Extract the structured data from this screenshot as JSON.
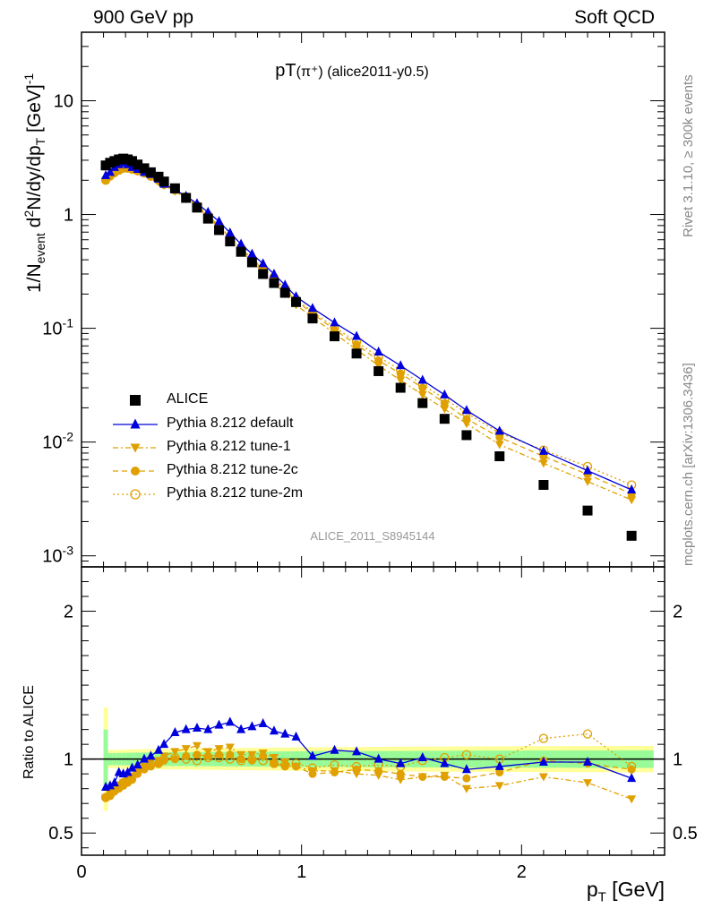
{
  "header": {
    "left": "900 GeV pp",
    "right": "Soft QCD"
  },
  "plot_title": {
    "main": "pT",
    "particle": "(π⁺)",
    "tag": " (alice2011-y0.5)"
  },
  "y_label_top": "1/Nevent d2N/dy/dpT [GeV]-1",
  "y_label_bottom": "Ratio to ALICE",
  "x_label": "pT [GeV]",
  "side_text_top": "Rivet 3.1.10, ≥ 300k events",
  "side_text_bottom": "mcplots.cern.ch [arXiv:1306.3436]",
  "analysis_id": "ALICE_2011_S8945144",
  "legend": [
    "ALICE",
    "Pythia 8.212 default",
    "Pythia 8.212 tune-1",
    "Pythia 8.212 tune-2c",
    "Pythia 8.212 tune-2m"
  ],
  "colors": {
    "data": "#000000",
    "default": "#0000dd",
    "tunes": "#e0a000",
    "band_inner": "#98fb98",
    "band_outer": "#ffff99"
  },
  "chart_data": [
    {
      "type": "scatter",
      "panel": "main",
      "yscale": "log",
      "xlim": [
        0,
        2.65
      ],
      "ylim": [
        0.0008,
        40
      ],
      "ytick_labels": [
        "10^-3",
        "10^-2",
        "10^-1",
        "1",
        "10"
      ],
      "xtick_labels": [
        "0",
        "1",
        "2"
      ],
      "x": [
        0.11,
        0.13,
        0.15,
        0.17,
        0.19,
        0.21,
        0.23,
        0.255,
        0.285,
        0.315,
        0.35,
        0.375,
        0.425,
        0.475,
        0.525,
        0.575,
        0.625,
        0.675,
        0.725,
        0.775,
        0.825,
        0.875,
        0.925,
        0.975,
        1.05,
        1.15,
        1.25,
        1.35,
        1.45,
        1.55,
        1.65,
        1.75,
        1.9,
        2.1,
        2.3,
        2.5
      ],
      "series": [
        {
          "name": "ALICE",
          "values": [
            2.7,
            2.85,
            2.95,
            3.05,
            3.1,
            3.05,
            2.95,
            2.75,
            2.55,
            2.35,
            2.15,
            1.95,
            1.7,
            1.4,
            1.15,
            0.92,
            0.73,
            0.58,
            0.47,
            0.38,
            0.3,
            0.25,
            0.205,
            0.17,
            0.122,
            0.085,
            0.06,
            0.042,
            0.03,
            0.022,
            0.016,
            0.0115,
            0.0075,
            0.0042,
            0.0025,
            0.0015
          ]
        },
        {
          "name": "Pythia 8.212 default",
          "values": [
            2.2,
            2.35,
            2.6,
            2.75,
            2.85,
            2.75,
            2.6,
            2.5,
            2.35,
            2.25,
            2.05,
            1.85,
            1.65,
            1.45,
            1.25,
            1.05,
            0.87,
            0.69,
            0.55,
            0.45,
            0.37,
            0.3,
            0.24,
            0.19,
            0.15,
            0.112,
            0.085,
            0.062,
            0.047,
            0.035,
            0.026,
            0.019,
            0.0125,
            0.0083,
            0.0056,
            0.0038
          ]
        },
        {
          "name": "Pythia 8.212 tune-1",
          "values": [
            2.0,
            2.2,
            2.35,
            2.45,
            2.55,
            2.55,
            2.5,
            2.4,
            2.3,
            2.15,
            1.95,
            1.8,
            1.6,
            1.38,
            1.17,
            0.95,
            0.76,
            0.6,
            0.48,
            0.39,
            0.31,
            0.25,
            0.2,
            0.16,
            0.125,
            0.09,
            0.065,
            0.047,
            0.035,
            0.026,
            0.0195,
            0.0145,
            0.0095,
            0.0065,
            0.0045,
            0.0031
          ]
        },
        {
          "name": "Pythia 8.212 tune-2c",
          "values": [
            2.0,
            2.15,
            2.3,
            2.45,
            2.55,
            2.55,
            2.5,
            2.4,
            2.3,
            2.15,
            1.97,
            1.82,
            1.62,
            1.42,
            1.2,
            0.98,
            0.79,
            0.62,
            0.5,
            0.4,
            0.33,
            0.27,
            0.215,
            0.175,
            0.135,
            0.097,
            0.072,
            0.052,
            0.04,
            0.03,
            0.022,
            0.016,
            0.011,
            0.0075,
            0.0052,
            0.0035
          ]
        },
        {
          "name": "Pythia 8.212 tune-2m",
          "values": [
            2.0,
            2.2,
            2.35,
            2.45,
            2.55,
            2.55,
            2.5,
            2.42,
            2.32,
            2.17,
            2.0,
            1.85,
            1.65,
            1.43,
            1.2,
            0.99,
            0.8,
            0.63,
            0.51,
            0.41,
            0.34,
            0.28,
            0.225,
            0.18,
            0.14,
            0.102,
            0.076,
            0.056,
            0.043,
            0.032,
            0.024,
            0.018,
            0.012,
            0.0085,
            0.0061,
            0.0042
          ]
        }
      ]
    },
    {
      "type": "scatter",
      "panel": "ratio",
      "xlim": [
        0,
        2.65
      ],
      "ylim": [
        0.35,
        2.3
      ],
      "ytick_labels": [
        "0.5",
        "1",
        "2"
      ],
      "xtick_labels": [
        "0",
        "1",
        "2"
      ],
      "x": [
        0.11,
        0.13,
        0.15,
        0.17,
        0.19,
        0.21,
        0.23,
        0.255,
        0.285,
        0.315,
        0.35,
        0.375,
        0.425,
        0.475,
        0.525,
        0.575,
        0.625,
        0.675,
        0.725,
        0.775,
        0.825,
        0.875,
        0.925,
        0.975,
        1.05,
        1.15,
        1.25,
        1.35,
        1.45,
        1.55,
        1.65,
        1.75,
        1.9,
        2.1,
        2.3,
        2.5
      ],
      "series": [
        {
          "name": "Pythia 8.212 default",
          "values": [
            0.81,
            0.82,
            0.84,
            0.91,
            0.9,
            0.91,
            0.94,
            0.96,
            1.0,
            1.02,
            1.06,
            1.1,
            1.18,
            1.2,
            1.21,
            1.2,
            1.23,
            1.25,
            1.2,
            1.22,
            1.24,
            1.19,
            1.17,
            1.15,
            1.02,
            1.06,
            1.05,
            1.0,
            0.97,
            1.01,
            0.97,
            0.93,
            0.95,
            0.98,
            0.98,
            0.87
          ]
        },
        {
          "name": "Pythia 8.212 tune-1",
          "values": [
            0.74,
            0.77,
            0.8,
            0.82,
            0.84,
            0.86,
            0.88,
            0.91,
            0.95,
            0.98,
            0.99,
            1.02,
            1.05,
            1.07,
            1.09,
            1.05,
            1.07,
            1.08,
            1.03,
            1.03,
            1.04,
            1.01,
            0.98,
            0.95,
            0.92,
            0.92,
            0.9,
            0.89,
            0.86,
            0.88,
            0.89,
            0.8,
            0.82,
            0.88,
            0.84,
            0.73
          ]
        },
        {
          "name": "Pythia 8.212 tune-2c",
          "values": [
            0.74,
            0.75,
            0.78,
            0.8,
            0.82,
            0.84,
            0.86,
            0.9,
            0.93,
            0.95,
            0.97,
            0.99,
            1.0,
            1.02,
            1.03,
            1.02,
            1.03,
            1.03,
            1.0,
            0.99,
            1.02,
            0.97,
            0.95,
            0.95,
            0.9,
            0.91,
            0.93,
            0.92,
            0.9,
            0.88,
            0.88,
            0.87,
            0.91,
            0.99,
            0.97,
            0.93
          ]
        },
        {
          "name": "Pythia 8.212 tune-2m",
          "values": [
            0.74,
            0.76,
            0.79,
            0.82,
            0.84,
            0.86,
            0.88,
            0.92,
            0.94,
            0.96,
            0.97,
            1.0,
            1.01,
            1.0,
            0.99,
            1.01,
            1.01,
            1.0,
            0.99,
            1.0,
            0.99,
            0.97,
            0.96,
            0.97,
            0.94,
            0.96,
            0.95,
            0.96,
            0.95,
            0.99,
            1.01,
            1.03,
            1.0,
            1.14,
            1.17,
            0.95
          ]
        }
      ]
    }
  ]
}
